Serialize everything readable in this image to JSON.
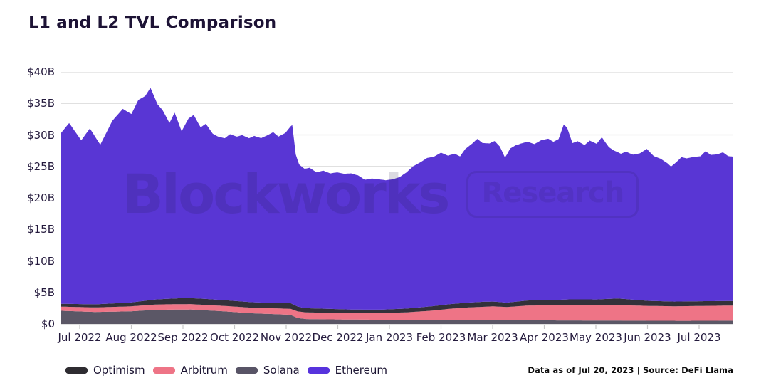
{
  "page": {
    "title": "L1 and L2 TVL Comparison",
    "footnote": "Data as of Jul 20, 2023 | Source: DeFi Llama"
  },
  "watermark": {
    "brand": "Blockworks",
    "badge": "Research"
  },
  "legend": {
    "position": "bottom",
    "items": [
      {
        "label": "Optimism",
        "color": "#2e2c31"
      },
      {
        "label": "Arbitrum",
        "color": "#ee7486"
      },
      {
        "label": "Solana",
        "color": "#585466"
      },
      {
        "label": "Ethereum",
        "color": "#5733dd"
      }
    ]
  },
  "colors": {
    "background": "#ffffff",
    "title_text": "#1d1335",
    "axis_text": "#241a3d",
    "gridline": "#dcdcdc",
    "axis_baseline": "#cfcfcf",
    "tick_mark": "#c8c8c8"
  },
  "chart_data": {
    "type": "area",
    "stacked": true,
    "title": "L1 and L2 TVL Comparison",
    "y_unit": "USD billions (TVL)",
    "ylim": [
      0,
      40
    ],
    "grid": "horizontal",
    "legend_position": "bottom",
    "x_domain": {
      "start": "2022-06-26",
      "end": "2023-07-20",
      "days": 389
    },
    "x_tick_labels": [
      "Jul 2022",
      "Aug 2022",
      "Sep 2022",
      "Oct 2022",
      "Nov 2022",
      "Dec 2022",
      "Jan 2023",
      "Feb 2023",
      "Mar 2023",
      "Apr 2023",
      "May 2023",
      "Jun 2023",
      "Jul 2023"
    ],
    "y_ticks": [
      {
        "value": 0,
        "label": "$0"
      },
      {
        "value": 5,
        "label": "$5B"
      },
      {
        "value": 10,
        "label": "$10B"
      },
      {
        "value": 15,
        "label": "$15B"
      },
      {
        "value": 20,
        "label": "$20B"
      },
      {
        "value": 25,
        "label": "$25B"
      },
      {
        "value": 30,
        "label": "$30B"
      },
      {
        "value": 35,
        "label": "$35B"
      },
      {
        "value": 40,
        "label": "$40B"
      }
    ],
    "stack_order_bottom_to_top": [
      "Solana",
      "Arbitrum",
      "Optimism",
      "Ethereum"
    ],
    "point_format": "[day_offset_from_start, tvl_billions_usd]",
    "series": [
      {
        "name": "Solana",
        "color": "#5b5766",
        "points": [
          [
            0,
            2.1
          ],
          [
            20,
            1.9
          ],
          [
            40,
            2.0
          ],
          [
            55,
            2.25
          ],
          [
            75,
            2.3
          ],
          [
            95,
            2.0
          ],
          [
            110,
            1.7
          ],
          [
            125,
            1.55
          ],
          [
            133,
            1.45
          ],
          [
            137,
            0.95
          ],
          [
            142,
            0.78
          ],
          [
            150,
            0.75
          ],
          [
            170,
            0.7
          ],
          [
            190,
            0.66
          ],
          [
            210,
            0.62
          ],
          [
            240,
            0.6
          ],
          [
            270,
            0.57
          ],
          [
            300,
            0.55
          ],
          [
            330,
            0.52
          ],
          [
            360,
            0.5
          ],
          [
            389,
            0.52
          ]
        ]
      },
      {
        "name": "Arbitrum",
        "color": "#ee7486",
        "points": [
          [
            0,
            0.65
          ],
          [
            30,
            0.75
          ],
          [
            60,
            0.85
          ],
          [
            90,
            0.85
          ],
          [
            120,
            0.9
          ],
          [
            133,
            0.95
          ],
          [
            137,
            1.05
          ],
          [
            150,
            1.05
          ],
          [
            170,
            1.0
          ],
          [
            185,
            1.05
          ],
          [
            200,
            1.2
          ],
          [
            215,
            1.5
          ],
          [
            225,
            1.8
          ],
          [
            235,
            2.0
          ],
          [
            250,
            2.2
          ],
          [
            258,
            2.1
          ],
          [
            270,
            2.35
          ],
          [
            285,
            2.4
          ],
          [
            295,
            2.45
          ],
          [
            310,
            2.5
          ],
          [
            325,
            2.45
          ],
          [
            340,
            2.35
          ],
          [
            355,
            2.3
          ],
          [
            370,
            2.35
          ],
          [
            389,
            2.4
          ]
        ]
      },
      {
        "name": "Optimism",
        "color": "#33313a",
        "points": [
          [
            0,
            0.45
          ],
          [
            20,
            0.5
          ],
          [
            40,
            0.6
          ],
          [
            55,
            0.8
          ],
          [
            70,
            0.95
          ],
          [
            85,
            0.95
          ],
          [
            100,
            0.9
          ],
          [
            120,
            0.85
          ],
          [
            133,
            0.9
          ],
          [
            140,
            0.68
          ],
          [
            155,
            0.62
          ],
          [
            170,
            0.58
          ],
          [
            185,
            0.55
          ],
          [
            200,
            0.6
          ],
          [
            215,
            0.7
          ],
          [
            230,
            0.75
          ],
          [
            245,
            0.8
          ],
          [
            258,
            0.7
          ],
          [
            270,
            0.8
          ],
          [
            285,
            0.85
          ],
          [
            295,
            0.9
          ],
          [
            310,
            0.85
          ],
          [
            322,
            1.05
          ],
          [
            340,
            0.8
          ],
          [
            355,
            0.75
          ],
          [
            370,
            0.75
          ],
          [
            389,
            0.72
          ]
        ]
      },
      {
        "name": "Ethereum",
        "color": "#5936d4",
        "points": [
          [
            0,
            27.0
          ],
          [
            5,
            28.7
          ],
          [
            12,
            26.0
          ],
          [
            17,
            27.9
          ],
          [
            23,
            25.3
          ],
          [
            30,
            29.0
          ],
          [
            36,
            30.8
          ],
          [
            41,
            29.9
          ],
          [
            45,
            32.0
          ],
          [
            49,
            32.5
          ],
          [
            52,
            33.7
          ],
          [
            56,
            31.0
          ],
          [
            59,
            30.0
          ],
          [
            63,
            27.9
          ],
          [
            66,
            29.5
          ],
          [
            70,
            26.5
          ],
          [
            74,
            28.5
          ],
          [
            77,
            29.1
          ],
          [
            81,
            27.2
          ],
          [
            84,
            27.8
          ],
          [
            88,
            26.3
          ],
          [
            91,
            25.9
          ],
          [
            95,
            25.7
          ],
          [
            98,
            26.4
          ],
          [
            102,
            26.1
          ],
          [
            105,
            26.4
          ],
          [
            109,
            26.0
          ],
          [
            112,
            26.4
          ],
          [
            116,
            26.1
          ],
          [
            119,
            26.5
          ],
          [
            123,
            27.1
          ],
          [
            126,
            26.4
          ],
          [
            130,
            27.0
          ],
          [
            132,
            27.7
          ],
          [
            134,
            28.4
          ],
          [
            136,
            24.0
          ],
          [
            138,
            22.6
          ],
          [
            141,
            22.1
          ],
          [
            144,
            22.3
          ],
          [
            148,
            21.6
          ],
          [
            152,
            21.9
          ],
          [
            156,
            21.5
          ],
          [
            160,
            21.7
          ],
          [
            164,
            21.5
          ],
          [
            168,
            21.6
          ],
          [
            172,
            21.3
          ],
          [
            176,
            20.6
          ],
          [
            180,
            20.8
          ],
          [
            184,
            20.7
          ],
          [
            188,
            20.5
          ],
          [
            192,
            20.6
          ],
          [
            196,
            20.9
          ],
          [
            200,
            21.6
          ],
          [
            204,
            22.5
          ],
          [
            208,
            23.0
          ],
          [
            212,
            23.6
          ],
          [
            216,
            23.7
          ],
          [
            220,
            24.2
          ],
          [
            224,
            23.6
          ],
          [
            228,
            23.8
          ],
          [
            231,
            23.3
          ],
          [
            234,
            24.4
          ],
          [
            238,
            25.2
          ],
          [
            241,
            25.9
          ],
          [
            244,
            25.2
          ],
          [
            248,
            25.1
          ],
          [
            251,
            25.5
          ],
          [
            254,
            24.7
          ],
          [
            257,
            23.0
          ],
          [
            260,
            24.4
          ],
          [
            263,
            24.8
          ],
          [
            266,
            25.0
          ],
          [
            270,
            25.2
          ],
          [
            274,
            24.8
          ],
          [
            278,
            25.4
          ],
          [
            282,
            25.6
          ],
          [
            285,
            25.1
          ],
          [
            288,
            25.5
          ],
          [
            291,
            27.8
          ],
          [
            293,
            27.2
          ],
          [
            296,
            24.8
          ],
          [
            299,
            25.1
          ],
          [
            303,
            24.5
          ],
          [
            306,
            25.2
          ],
          [
            310,
            24.7
          ],
          [
            313,
            25.7
          ],
          [
            317,
            24.1
          ],
          [
            320,
            23.5
          ],
          [
            324,
            23.0
          ],
          [
            327,
            23.4
          ],
          [
            331,
            23.0
          ],
          [
            335,
            23.3
          ],
          [
            339,
            24.1
          ],
          [
            343,
            23.0
          ],
          [
            347,
            22.6
          ],
          [
            351,
            21.9
          ],
          [
            353,
            21.4
          ],
          [
            356,
            22.1
          ],
          [
            359,
            22.9
          ],
          [
            362,
            22.7
          ],
          [
            366,
            22.9
          ],
          [
            370,
            23.0
          ],
          [
            373,
            23.8
          ],
          [
            376,
            23.2
          ],
          [
            380,
            23.3
          ],
          [
            383,
            23.6
          ],
          [
            386,
            23.0
          ],
          [
            389,
            22.9
          ]
        ]
      }
    ]
  }
}
